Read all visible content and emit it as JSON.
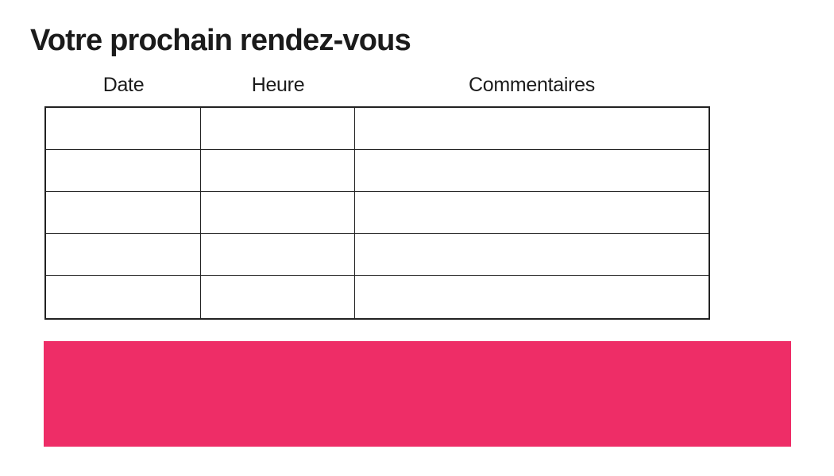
{
  "page": {
    "title": "Votre prochain rendez-vous"
  },
  "table": {
    "headers": [
      "Date",
      "Heure",
      "Commentaires"
    ],
    "rows": [
      [
        "",
        "",
        ""
      ],
      [
        "",
        "",
        ""
      ],
      [
        "",
        "",
        ""
      ],
      [
        "",
        "",
        ""
      ],
      [
        "",
        "",
        ""
      ]
    ]
  },
  "banner": {
    "text": ""
  },
  "colors": {
    "accent_pink": "#EE2D67",
    "table_border": "#222222",
    "text": "#1B1B1B"
  }
}
